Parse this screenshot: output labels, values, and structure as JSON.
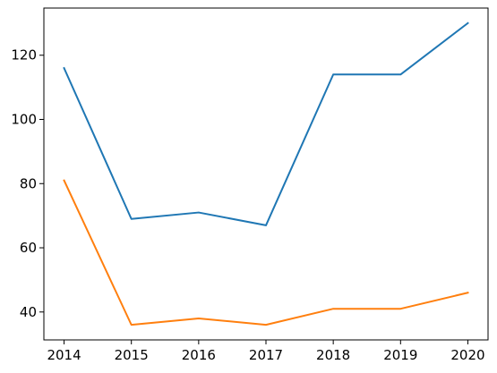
{
  "chart_data": {
    "type": "line",
    "title": "",
    "xlabel": "",
    "ylabel": "",
    "x": [
      2014,
      2015,
      2016,
      2017,
      2018,
      2019,
      2020
    ],
    "xticks": [
      "2014",
      "2015",
      "2016",
      "2017",
      "2018",
      "2019",
      "2020"
    ],
    "yticks": [
      "40",
      "60",
      "80",
      "100",
      "120"
    ],
    "ylim": [
      31.3,
      134.7
    ],
    "xlim": [
      2013.7,
      2020.3
    ],
    "grid": false,
    "legend": "none",
    "series": [
      {
        "color": "#1f77b4",
        "values": [
          116,
          69,
          71,
          67,
          114,
          114,
          130
        ]
      },
      {
        "color": "#ff7f0e",
        "values": [
          81,
          36,
          38,
          36,
          41,
          41,
          46
        ]
      }
    ]
  }
}
